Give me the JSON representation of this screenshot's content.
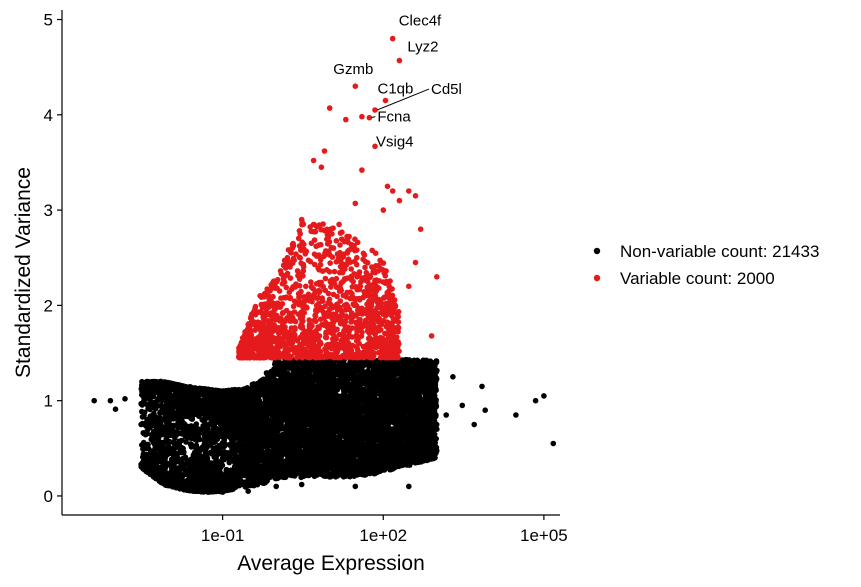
{
  "chart_data": {
    "type": "scatter",
    "title": "",
    "xlabel": "Average Expression",
    "ylabel": "Standardized Variance",
    "x_scale": "log10",
    "xlim": [
      0.0001,
      200000
    ],
    "ylim": [
      -0.2,
      5.1
    ],
    "x_ticks": [
      0.1,
      100,
      100000
    ],
    "x_tick_labels": [
      "1e-01",
      "1e+02",
      "1e+05"
    ],
    "y_ticks": [
      0,
      1,
      2,
      3,
      4,
      5
    ],
    "y_tick_labels": [
      "0",
      "1",
      "2",
      "3",
      "4",
      "5"
    ],
    "grid": false,
    "legend_position": "right",
    "series": [
      {
        "name": "Non-variable count: 21433",
        "color": "#000000",
        "count": 21433,
        "points": [
          [
            0.0004,
            1.0
          ],
          [
            0.0008,
            1.0
          ],
          [
            0.001,
            0.91
          ],
          [
            0.0015,
            1.02
          ],
          [
            0.003,
            0.75
          ],
          [
            0.005,
            0.6
          ],
          [
            0.007,
            0.4
          ],
          [
            0.02,
            0.15
          ],
          [
            0.05,
            0.05
          ],
          [
            0.1,
            0.04
          ],
          [
            0.3,
            0.05
          ],
          [
            1,
            0.1
          ],
          [
            3,
            0.12
          ],
          [
            10,
            0.2
          ],
          [
            30,
            0.1
          ],
          [
            300,
            0.1
          ],
          [
            700,
            0.45
          ],
          [
            1000,
            0.7
          ],
          [
            1500,
            0.85
          ],
          [
            2000,
            1.25
          ],
          [
            3000,
            0.95
          ],
          [
            5000,
            0.75
          ],
          [
            7000,
            1.15
          ],
          [
            8000,
            0.9
          ],
          [
            30000,
            0.85
          ],
          [
            70000,
            1.0
          ],
          [
            100000,
            1.05
          ],
          [
            150000,
            0.55
          ]
        ],
        "trend": {
          "x": [
            0.003,
            0.008,
            0.02,
            0.05,
            0.1,
            0.2,
            0.5,
            1,
            5,
            30,
            100,
            1000
          ],
          "y_low": [
            0.3,
            0.12,
            0.06,
            0.04,
            0.05,
            0.08,
            0.12,
            0.18,
            0.2,
            0.2,
            0.25,
            0.4
          ],
          "y_high": [
            1.2,
            1.2,
            1.15,
            1.12,
            1.1,
            1.12,
            1.2,
            1.43,
            1.43,
            1.43,
            1.43,
            1.43
          ]
        }
      },
      {
        "name": "Variable count: 2000",
        "color": "#e41a1c",
        "count": 2000,
        "labeled_points": [
          {
            "gene": "Clec4f",
            "x": 150,
            "y": 4.8
          },
          {
            "gene": "Lyz2",
            "x": 200,
            "y": 4.57
          },
          {
            "gene": "Gzmb",
            "x": 30,
            "y": 4.3
          },
          {
            "gene": "C1qb",
            "x": 110,
            "y": 4.15
          },
          {
            "gene": "Cd5l",
            "x": 70,
            "y": 4.05
          },
          {
            "gene": "Fcna",
            "x": 55,
            "y": 3.97
          },
          {
            "gene": "Vsig4",
            "x": 70,
            "y": 3.67
          }
        ],
        "points": [
          [
            10,
            4.07
          ],
          [
            20,
            3.95
          ],
          [
            40,
            3.98
          ],
          [
            8,
            3.62
          ],
          [
            5,
            3.52
          ],
          [
            7,
            3.45
          ],
          [
            40,
            3.42
          ],
          [
            120,
            3.25
          ],
          [
            150,
            3.2
          ],
          [
            300,
            3.2
          ],
          [
            400,
            3.15
          ],
          [
            100,
            3.0
          ],
          [
            200,
            3.1
          ],
          [
            500,
            2.8
          ],
          [
            1000,
            2.3
          ],
          [
            800,
            1.68
          ],
          [
            400,
            2.45
          ],
          [
            300,
            2.2
          ],
          [
            30,
            3.07
          ],
          [
            15,
            2.85
          ],
          [
            3,
            2.9
          ],
          [
            2,
            2.6
          ],
          [
            0.5,
            2.1
          ],
          [
            0.3,
            1.6
          ]
        ],
        "cloud": {
          "x": [
            0.2,
            0.4,
            1,
            3,
            10,
            30,
            100,
            200
          ],
          "y_low": [
            1.45,
            1.45,
            1.45,
            1.45,
            1.45,
            1.45,
            1.45,
            1.45
          ],
          "y_high": [
            1.55,
            2.0,
            2.3,
            2.9,
            2.85,
            2.7,
            2.5,
            2.0
          ]
        }
      }
    ]
  },
  "legend": {
    "items": [
      {
        "label": "Non-variable count: 21433",
        "color": "#000000"
      },
      {
        "label": "Variable count: 2000",
        "color": "#e41a1c"
      }
    ]
  }
}
